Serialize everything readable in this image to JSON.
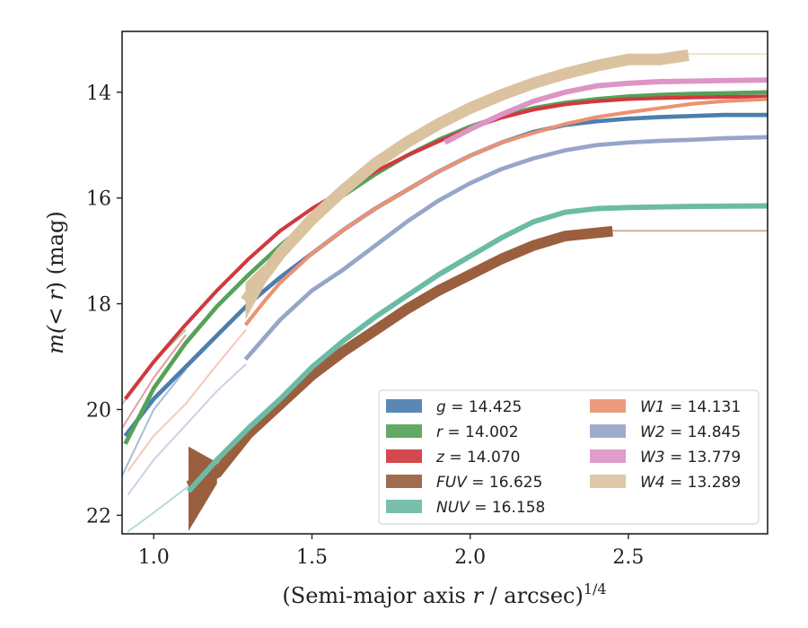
{
  "chart_data": {
    "type": "line",
    "xlabel_prefix": "(Semi-major axis ",
    "xlabel_var": "r",
    "xlabel_suffix": " / arcsec)",
    "xlabel_sup": "1/4",
    "ylabel_prefix": "m(< ",
    "ylabel_var": "r",
    "ylabel_suffix": ") (mag)",
    "xlim": [
      0.9,
      2.94
    ],
    "ylim": [
      22.35,
      12.85
    ],
    "xticks": [
      1.0,
      1.5,
      2.0,
      2.5
    ],
    "xtick_labels": [
      "1.0",
      "1.5",
      "2.0",
      "2.5"
    ],
    "yticks": [
      14,
      16,
      18,
      20,
      22
    ],
    "ytick_labels": [
      "14",
      "16",
      "18",
      "20",
      "22"
    ],
    "legend_position": "lower right",
    "series": [
      {
        "name": "g = 14.425",
        "band": "g",
        "value": "14.425",
        "color": "#4c7eae",
        "width_mag": 0.08,
        "faint": [
          [
            0.9,
            21.25
          ],
          [
            1.0,
            20.0
          ],
          [
            1.1,
            19.25
          ]
        ],
        "points": [
          [
            0.91,
            20.5
          ],
          [
            1.0,
            19.8
          ],
          [
            1.1,
            19.2
          ],
          [
            1.2,
            18.6
          ],
          [
            1.3,
            18.0
          ],
          [
            1.4,
            17.5
          ],
          [
            1.5,
            17.05
          ],
          [
            1.6,
            16.6
          ],
          [
            1.7,
            16.2
          ],
          [
            1.8,
            15.85
          ],
          [
            1.9,
            15.5
          ],
          [
            2.0,
            15.2
          ],
          [
            2.1,
            14.95
          ],
          [
            2.2,
            14.75
          ],
          [
            2.3,
            14.62
          ],
          [
            2.4,
            14.55
          ],
          [
            2.5,
            14.5
          ],
          [
            2.6,
            14.47
          ],
          [
            2.7,
            14.45
          ],
          [
            2.8,
            14.43
          ],
          [
            2.94,
            14.43
          ]
        ]
      },
      {
        "name": "r = 14.002",
        "band": "r",
        "value": "14.002",
        "color": "#55a258",
        "width_mag": 0.08,
        "faint": [
          [
            0.9,
            19.9
          ],
          [
            1.0,
            19.1
          ],
          [
            1.1,
            18.5
          ]
        ],
        "points": [
          [
            0.91,
            20.65
          ],
          [
            1.0,
            19.6
          ],
          [
            1.1,
            18.75
          ],
          [
            1.2,
            18.05
          ],
          [
            1.3,
            17.45
          ],
          [
            1.4,
            16.9
          ],
          [
            1.5,
            16.4
          ],
          [
            1.6,
            15.95
          ],
          [
            1.7,
            15.55
          ],
          [
            1.8,
            15.2
          ],
          [
            1.9,
            14.9
          ],
          [
            2.0,
            14.65
          ],
          [
            2.1,
            14.45
          ],
          [
            2.2,
            14.3
          ],
          [
            2.3,
            14.2
          ],
          [
            2.4,
            14.13
          ],
          [
            2.5,
            14.08
          ],
          [
            2.6,
            14.05
          ],
          [
            2.7,
            14.03
          ],
          [
            2.8,
            14.02
          ],
          [
            2.94,
            14.0
          ]
        ]
      },
      {
        "name": "z = 14.070",
        "band": "z",
        "value": "14.070",
        "color": "#d0393f",
        "width_mag": 0.07,
        "faint": [
          [
            0.9,
            20.35
          ],
          [
            1.0,
            19.4
          ],
          [
            1.1,
            18.6
          ]
        ],
        "points": [
          [
            0.91,
            19.8
          ],
          [
            1.0,
            19.1
          ],
          [
            1.1,
            18.4
          ],
          [
            1.2,
            17.75
          ],
          [
            1.3,
            17.15
          ],
          [
            1.4,
            16.62
          ],
          [
            1.5,
            16.2
          ],
          [
            1.6,
            15.85
          ],
          [
            1.7,
            15.5
          ],
          [
            1.8,
            15.2
          ],
          [
            1.9,
            14.93
          ],
          [
            2.0,
            14.68
          ],
          [
            2.1,
            14.48
          ],
          [
            2.2,
            14.33
          ],
          [
            2.3,
            14.23
          ],
          [
            2.4,
            14.17
          ],
          [
            2.5,
            14.13
          ],
          [
            2.6,
            14.11
          ],
          [
            2.7,
            14.1
          ],
          [
            2.8,
            14.09
          ],
          [
            2.94,
            14.08
          ]
        ]
      },
      {
        "name": "FUV = 16.625",
        "band": "FUV",
        "value": "16.625",
        "color": "#9a5f3f",
        "width_mag": 0.2,
        "faint": [
          [
            2.45,
            16.62
          ],
          [
            2.94,
            16.62
          ]
        ],
        "points": [
          [
            1.11,
            21.45
          ],
          [
            1.2,
            21.2
          ],
          [
            1.3,
            20.45
          ],
          [
            1.4,
            19.9
          ],
          [
            1.5,
            19.35
          ],
          [
            1.6,
            18.9
          ],
          [
            1.7,
            18.5
          ],
          [
            1.8,
            18.1
          ],
          [
            1.9,
            17.75
          ],
          [
            2.0,
            17.45
          ],
          [
            2.1,
            17.15
          ],
          [
            2.2,
            16.9
          ],
          [
            2.3,
            16.72
          ],
          [
            2.45,
            16.63
          ]
        ],
        "band_start": {
          "x": 1.11,
          "top": 20.7,
          "bottom": 22.3
        }
      },
      {
        "name": "NUV = 16.158",
        "band": "NUV",
        "value": "16.158",
        "color": "#6cbba5",
        "width_mag": 0.1,
        "faint": [
          [
            0.92,
            22.3
          ],
          [
            1.0,
            21.95
          ],
          [
            1.11,
            21.45
          ]
        ],
        "points": [
          [
            1.11,
            21.55
          ],
          [
            1.2,
            20.95
          ],
          [
            1.3,
            20.35
          ],
          [
            1.4,
            19.8
          ],
          [
            1.5,
            19.2
          ],
          [
            1.6,
            18.7
          ],
          [
            1.7,
            18.25
          ],
          [
            1.8,
            17.85
          ],
          [
            1.9,
            17.45
          ],
          [
            2.0,
            17.1
          ],
          [
            2.1,
            16.75
          ],
          [
            2.2,
            16.45
          ],
          [
            2.3,
            16.27
          ],
          [
            2.4,
            16.2
          ],
          [
            2.5,
            16.18
          ],
          [
            2.7,
            16.16
          ],
          [
            2.94,
            16.15
          ]
        ]
      },
      {
        "name": "W1 = 14.131",
        "band": "W1",
        "value": "14.131",
        "color": "#ec9272",
        "width_mag": 0.07,
        "faint": [
          [
            0.92,
            21.15
          ],
          [
            1.0,
            20.5
          ],
          [
            1.1,
            19.9
          ],
          [
            1.2,
            19.15
          ],
          [
            1.29,
            18.5
          ]
        ],
        "points": [
          [
            1.29,
            18.4
          ],
          [
            1.35,
            17.95
          ],
          [
            1.4,
            17.6
          ],
          [
            1.5,
            17.05
          ],
          [
            1.6,
            16.6
          ],
          [
            1.7,
            16.2
          ],
          [
            1.8,
            15.85
          ],
          [
            1.9,
            15.5
          ],
          [
            2.0,
            15.2
          ],
          [
            2.1,
            14.95
          ],
          [
            2.2,
            14.77
          ],
          [
            2.3,
            14.6
          ],
          [
            2.4,
            14.47
          ],
          [
            2.5,
            14.38
          ],
          [
            2.6,
            14.3
          ],
          [
            2.7,
            14.22
          ],
          [
            2.8,
            14.17
          ],
          [
            2.94,
            14.13
          ]
        ]
      },
      {
        "name": "W2 = 14.845",
        "band": "W2",
        "value": "14.845",
        "color": "#97a5c8",
        "width_mag": 0.08,
        "faint": [
          [
            0.92,
            21.6
          ],
          [
            1.0,
            20.95
          ],
          [
            1.1,
            20.3
          ],
          [
            1.2,
            19.65
          ],
          [
            1.29,
            19.15
          ]
        ],
        "points": [
          [
            1.29,
            19.05
          ],
          [
            1.4,
            18.3
          ],
          [
            1.5,
            17.75
          ],
          [
            1.6,
            17.35
          ],
          [
            1.7,
            16.9
          ],
          [
            1.8,
            16.45
          ],
          [
            1.9,
            16.05
          ],
          [
            2.0,
            15.72
          ],
          [
            2.1,
            15.45
          ],
          [
            2.2,
            15.25
          ],
          [
            2.3,
            15.1
          ],
          [
            2.4,
            15.0
          ],
          [
            2.5,
            14.95
          ],
          [
            2.6,
            14.92
          ],
          [
            2.7,
            14.9
          ],
          [
            2.8,
            14.87
          ],
          [
            2.94,
            14.85
          ]
        ]
      },
      {
        "name": "W3 = 13.779",
        "band": "W3",
        "value": "13.779",
        "color": "#dc95c5",
        "width_mag": 0.1,
        "faint": [],
        "points": [
          [
            1.92,
            14.95
          ],
          [
            2.0,
            14.7
          ],
          [
            2.1,
            14.42
          ],
          [
            2.2,
            14.17
          ],
          [
            2.3,
            14.0
          ],
          [
            2.4,
            13.88
          ],
          [
            2.5,
            13.83
          ],
          [
            2.6,
            13.8
          ],
          [
            2.7,
            13.79
          ],
          [
            2.8,
            13.78
          ],
          [
            2.94,
            13.77
          ]
        ]
      },
      {
        "name": "W4 = 13.289",
        "band": "W4",
        "value": "13.289",
        "color": "#dcc3a0",
        "width_mag": 0.22,
        "faint": [
          [
            2.69,
            13.28
          ],
          [
            2.94,
            13.28
          ]
        ],
        "points": [
          [
            1.29,
            17.95
          ],
          [
            1.35,
            17.45
          ],
          [
            1.4,
            17.05
          ],
          [
            1.5,
            16.4
          ],
          [
            1.6,
            15.85
          ],
          [
            1.7,
            15.35
          ],
          [
            1.8,
            14.95
          ],
          [
            1.9,
            14.6
          ],
          [
            2.0,
            14.3
          ],
          [
            2.1,
            14.05
          ],
          [
            2.2,
            13.83
          ],
          [
            2.3,
            13.65
          ],
          [
            2.4,
            13.5
          ],
          [
            2.5,
            13.38
          ],
          [
            2.6,
            13.38
          ],
          [
            2.69,
            13.3
          ]
        ],
        "band_start": {
          "x": 1.29,
          "top": 17.6,
          "bottom": 18.3
        }
      }
    ]
  }
}
